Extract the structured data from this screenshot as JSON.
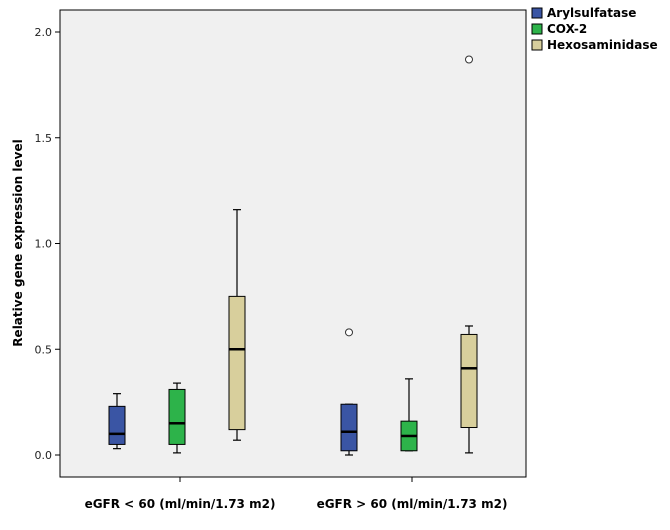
{
  "chart_data": {
    "type": "boxplot",
    "ylabel": "Relative gene expression level",
    "ylim": [
      -0.05,
      2.12
    ],
    "yticks": [
      0.0,
      0.5,
      1.0,
      1.5,
      2.0
    ],
    "ytick_labels": [
      "0.0",
      "0.5",
      "1.0",
      "1.5",
      "2.0"
    ],
    "categories": [
      "eGFR < 60 (ml/min/1.73 m2)",
      "eGFR > 60 (ml/min/1.73 m2)"
    ],
    "legend_position": "top-right",
    "plot_background": "#f0f0f0",
    "series": [
      {
        "name": "Arylsulfatase",
        "color": "#3a55a4",
        "boxes": [
          {
            "min": 0.03,
            "q1": 0.05,
            "median": 0.1,
            "q3": 0.23,
            "max": 0.29,
            "outliers": []
          },
          {
            "min": 0.0,
            "q1": 0.02,
            "median": 0.11,
            "q3": 0.24,
            "max": 0.24,
            "outliers": [
              0.58
            ]
          }
        ]
      },
      {
        "name": "COX-2",
        "color": "#2db34a",
        "boxes": [
          {
            "min": 0.01,
            "q1": 0.05,
            "median": 0.15,
            "q3": 0.31,
            "max": 0.34,
            "outliers": []
          },
          {
            "min": 0.02,
            "q1": 0.02,
            "median": 0.09,
            "q3": 0.16,
            "max": 0.36,
            "outliers": []
          }
        ]
      },
      {
        "name": "Hexosaminidase",
        "color": "#d8cf9c",
        "boxes": [
          {
            "min": 0.07,
            "q1": 0.12,
            "median": 0.5,
            "q3": 0.75,
            "max": 1.16,
            "outliers": []
          },
          {
            "min": 0.01,
            "q1": 0.13,
            "median": 0.41,
            "q3": 0.57,
            "max": 0.61,
            "outliers": [
              1.87
            ]
          }
        ]
      }
    ]
  }
}
